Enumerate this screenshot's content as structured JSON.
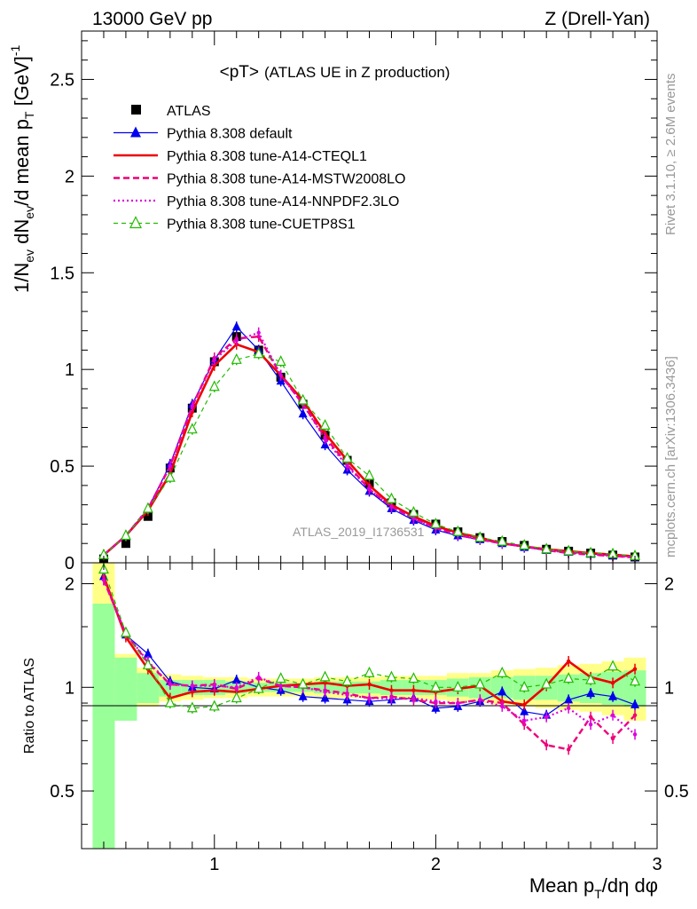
{
  "header": {
    "left": "13000 GeV pp",
    "right": "Z (Drell-Yan)"
  },
  "side": {
    "rivet": "Rivet 3.1.10, ≥ 2.6M events",
    "mcplots": "mcplots.cern.ch [arXiv:1306.3436]"
  },
  "chart_data": [
    {
      "type": "line",
      "title": "<pT>",
      "subtitle": "(ATLAS UE in Z production)",
      "ylabel": "1/N_ev dN_ev/d mean p_T [GeV]^-1",
      "watermark": "ATLAS_2019_I1736531",
      "xlim": [
        0.4,
        3.0
      ],
      "ylim": [
        0,
        2.75
      ],
      "x_ticks": [
        1,
        2,
        3
      ],
      "y_ticks": [
        0,
        0.5,
        1,
        1.5,
        2,
        2.5
      ],
      "y_tick_labels": [
        "0",
        "0.5",
        "1",
        "1.5",
        "2",
        "2.5"
      ],
      "x": [
        0.5,
        0.6,
        0.7,
        0.8,
        0.9,
        1.0,
        1.1,
        1.2,
        1.3,
        1.4,
        1.5,
        1.6,
        1.7,
        1.8,
        1.9,
        2.0,
        2.1,
        2.2,
        2.3,
        2.4,
        2.5,
        2.6,
        2.7,
        2.8,
        2.9
      ],
      "series": [
        {
          "name": "ATLAS",
          "color": "#000000",
          "style": "data",
          "values": [
            0.02,
            0.1,
            0.24,
            0.49,
            0.8,
            1.04,
            1.17,
            1.1,
            0.96,
            0.82,
            0.66,
            0.53,
            0.41,
            0.31,
            0.25,
            0.2,
            0.16,
            0.13,
            0.11,
            0.09,
            0.07,
            0.06,
            0.05,
            0.04,
            0.03
          ]
        },
        {
          "name": "Pythia 8.308 default",
          "color": "#0000ee",
          "style": "solid-thin",
          "marker": "triangle-filled",
          "values": [
            0.04,
            0.14,
            0.28,
            0.51,
            0.82,
            1.05,
            1.22,
            1.1,
            0.94,
            0.77,
            0.61,
            0.48,
            0.37,
            0.28,
            0.22,
            0.17,
            0.14,
            0.12,
            0.1,
            0.08,
            0.065,
            0.055,
            0.045,
            0.038,
            0.03
          ]
        },
        {
          "name": "Pythia 8.308 tune-A14-CTEQL1",
          "color": "#ee0000",
          "style": "solid-thick",
          "values": [
            0.04,
            0.14,
            0.27,
            0.46,
            0.78,
            1.02,
            1.13,
            1.09,
            0.97,
            0.84,
            0.67,
            0.53,
            0.4,
            0.3,
            0.24,
            0.19,
            0.155,
            0.13,
            0.1,
            0.085,
            0.07,
            0.06,
            0.05,
            0.042,
            0.033
          ]
        },
        {
          "name": "Pythia 8.308 tune-A14-MSTW2008LO",
          "color": "#ee0077",
          "style": "dashed-thick",
          "values": [
            0.04,
            0.14,
            0.28,
            0.5,
            0.81,
            1.06,
            1.16,
            1.17,
            0.97,
            0.82,
            0.65,
            0.51,
            0.38,
            0.29,
            0.23,
            0.18,
            0.145,
            0.12,
            0.1,
            0.085,
            0.065,
            0.05,
            0.042,
            0.035,
            0.028
          ]
        },
        {
          "name": "Pythia 8.308 tune-A14-NNPDF2.3LO",
          "color": "#dd00dd",
          "style": "dotted",
          "values": [
            0.04,
            0.14,
            0.28,
            0.5,
            0.81,
            1.05,
            1.15,
            1.19,
            0.97,
            0.82,
            0.64,
            0.5,
            0.38,
            0.29,
            0.23,
            0.18,
            0.145,
            0.12,
            0.1,
            0.085,
            0.066,
            0.052,
            0.044,
            0.036,
            0.029
          ]
        },
        {
          "name": "Pythia 8.308 tune-CUETP8S1",
          "color": "#22bb00",
          "style": "dashed-thin",
          "marker": "triangle-open",
          "values": [
            0.04,
            0.14,
            0.28,
            0.44,
            0.69,
            0.91,
            1.05,
            1.08,
            1.04,
            0.84,
            0.71,
            0.54,
            0.45,
            0.33,
            0.26,
            0.2,
            0.16,
            0.13,
            0.11,
            0.09,
            0.07,
            0.06,
            0.05,
            0.045,
            0.035
          ]
        }
      ]
    },
    {
      "type": "line",
      "ylabel": "Ratio to ATLAS",
      "xlabel": "Mean p_T/dη dφ",
      "xlim": [
        0.4,
        3.0
      ],
      "ylim": [
        0.34,
        2.3
      ],
      "x_ticks": [
        1,
        2,
        3
      ],
      "x_tick_labels": [
        "1",
        "2",
        "3"
      ],
      "y_ticks": [
        0.5,
        1,
        2
      ],
      "y_tick_labels": [
        "0.5",
        "1",
        "2"
      ],
      "band_stat": [
        [
          0.34,
          1.75
        ],
        [
          0.8,
          1.22
        ],
        [
          0.9,
          1.1
        ],
        [
          0.94,
          1.05
        ],
        [
          0.95,
          1.05
        ],
        [
          0.95,
          1.05
        ],
        [
          0.96,
          1.04
        ],
        [
          0.97,
          1.03
        ],
        [
          0.97,
          1.03
        ],
        [
          0.97,
          1.03
        ],
        [
          0.96,
          1.04
        ],
        [
          0.96,
          1.04
        ],
        [
          0.96,
          1.04
        ],
        [
          0.95,
          1.05
        ],
        [
          0.95,
          1.05
        ],
        [
          0.95,
          1.05
        ],
        [
          0.94,
          1.06
        ],
        [
          0.93,
          1.07
        ],
        [
          0.93,
          1.07
        ],
        [
          0.92,
          1.08
        ],
        [
          0.92,
          1.08
        ],
        [
          0.91,
          1.09
        ],
        [
          0.9,
          1.1
        ],
        [
          0.89,
          1.11
        ],
        [
          0.88,
          1.12
        ]
      ],
      "band_syst": [
        [
          0.34,
          2.3
        ],
        [
          0.84,
          1.25
        ],
        [
          0.88,
          1.14
        ],
        [
          0.91,
          1.09
        ],
        [
          0.92,
          1.08
        ],
        [
          0.93,
          1.07
        ],
        [
          0.93,
          1.07
        ],
        [
          0.94,
          1.06
        ],
        [
          0.94,
          1.06
        ],
        [
          0.94,
          1.06
        ],
        [
          0.93,
          1.07
        ],
        [
          0.93,
          1.07
        ],
        [
          0.93,
          1.07
        ],
        [
          0.93,
          1.08
        ],
        [
          0.92,
          1.08
        ],
        [
          0.92,
          1.08
        ],
        [
          0.91,
          1.1
        ],
        [
          0.9,
          1.1
        ],
        [
          0.89,
          1.12
        ],
        [
          0.88,
          1.13
        ],
        [
          0.87,
          1.14
        ],
        [
          0.86,
          1.16
        ],
        [
          0.85,
          1.17
        ],
        [
          0.83,
          1.19
        ],
        [
          0.8,
          1.22
        ]
      ],
      "series": [
        {
          "name": "Pythia 8.308 default",
          "color": "#0000ee",
          "style": "solid-thin",
          "marker": "triangle-filled",
          "values": [
            2.1,
            1.42,
            1.25,
            1.04,
            1.0,
            0.99,
            1.05,
            1.0,
            0.98,
            0.94,
            0.93,
            0.92,
            0.91,
            0.92,
            0.93,
            0.87,
            0.88,
            0.91,
            0.97,
            0.85,
            0.83,
            0.92,
            0.96,
            0.94,
            0.89
          ]
        },
        {
          "name": "Pythia 8.308 tune-A14-CTEQL1",
          "color": "#ee0000",
          "style": "solid-thick",
          "values": [
            2.1,
            1.4,
            1.13,
            0.93,
            0.97,
            0.98,
            0.97,
            0.99,
            1.01,
            1.02,
            1.03,
            1.01,
            1.02,
            0.98,
            0.98,
            0.97,
            0.99,
            1.01,
            0.91,
            0.89,
            1.01,
            1.19,
            1.07,
            1.03,
            1.13
          ]
        },
        {
          "name": "Pythia 8.308 tune-A14-MSTW2008LO",
          "color": "#ee0077",
          "style": "dashed-thick",
          "values": [
            2.05,
            1.43,
            1.18,
            1.02,
            1.01,
            1.02,
            0.99,
            1.06,
            1.01,
            1.0,
            0.98,
            0.96,
            0.93,
            0.94,
            0.92,
            0.9,
            0.9,
            0.92,
            0.9,
            0.78,
            0.68,
            0.66,
            0.82,
            0.71,
            0.83
          ]
        },
        {
          "name": "Pythia 8.308 tune-A14-NNPDF2.3LO",
          "color": "#dd00dd",
          "style": "dotted",
          "values": [
            2.05,
            1.43,
            1.19,
            1.02,
            1.01,
            1.01,
            1.0,
            1.07,
            1.01,
            1.0,
            0.97,
            0.95,
            0.93,
            0.93,
            0.93,
            0.91,
            0.9,
            0.92,
            0.88,
            0.8,
            0.82,
            0.87,
            0.78,
            0.83,
            0.73
          ]
        },
        {
          "name": "Pythia 8.308 tune-CUETP8S1",
          "color": "#22bb00",
          "style": "dashed-thin",
          "marker": "triangle-open",
          "values": [
            2.2,
            1.44,
            1.16,
            0.9,
            0.87,
            0.88,
            0.93,
            0.99,
            1.06,
            1.02,
            1.07,
            1.04,
            1.1,
            1.07,
            1.06,
            1.0,
            1.0,
            1.02,
            1.1,
            1.0,
            1.02,
            1.06,
            1.05,
            1.15,
            1.04
          ]
        }
      ]
    }
  ]
}
